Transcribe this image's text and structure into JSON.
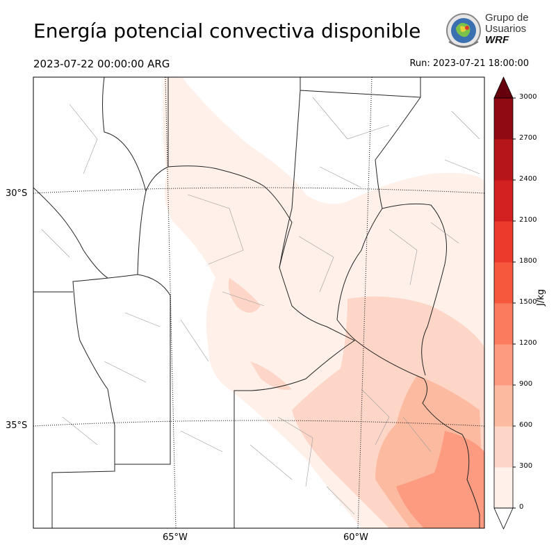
{
  "header": {
    "title": "Energía potencial convectiva disponible",
    "valid_time": "2023-07-22 00:00:00 ARG",
    "run_time": "Run: 2023-07-21 18:00:00"
  },
  "logo": {
    "line1": "Grupo de",
    "line2": "Usuarios",
    "line3": "WRF"
  },
  "map": {
    "lat_labels": [
      "30°S",
      "35°S"
    ],
    "lon_labels": [
      "65°W",
      "60°W"
    ]
  },
  "colorbar": {
    "unit": "J/kg",
    "levels": [
      0,
      300,
      600,
      900,
      1200,
      1500,
      1800,
      2100,
      2400,
      2700,
      3000
    ],
    "level_labels": [
      "0",
      "300",
      "600",
      "900",
      "1200",
      "1500",
      "1800",
      "2100",
      "2400",
      "2700",
      "3000"
    ],
    "colors": [
      "#fff0ea",
      "#fed6c8",
      "#fcbba1",
      "#fc9b80",
      "#fb7b5f",
      "#f6583e",
      "#ec3a2c",
      "#d32020",
      "#b61519",
      "#8f0a12",
      "#67000d"
    ],
    "extend": "both"
  }
}
